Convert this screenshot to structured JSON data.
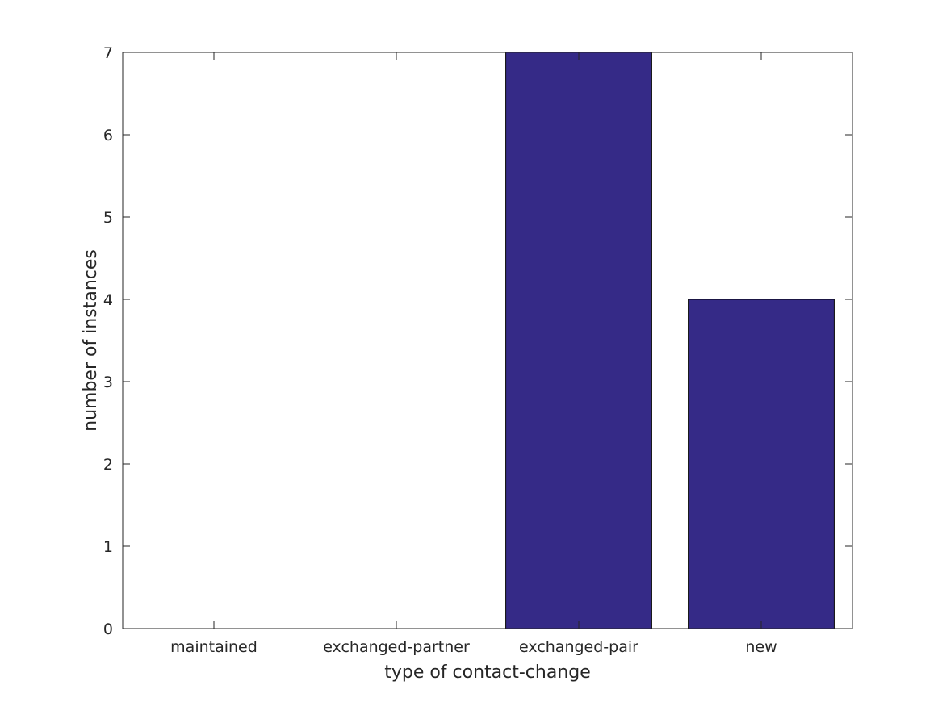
{
  "chart_data": {
    "type": "bar",
    "title": "",
    "xlabel": "type of contact-change",
    "ylabel": "number of instances",
    "categories": [
      "maintained",
      "exchanged-partner",
      "exchanged-pair",
      "new"
    ],
    "values": [
      0,
      0,
      7,
      4
    ],
    "ylim": [
      0,
      7
    ],
    "yticks": [
      0,
      1,
      2,
      3,
      4,
      5,
      6,
      7
    ],
    "grid": false,
    "legend": "none",
    "bar_color": "#352a87",
    "bar_edge_color": "#000000",
    "axes_color": "#262626"
  }
}
